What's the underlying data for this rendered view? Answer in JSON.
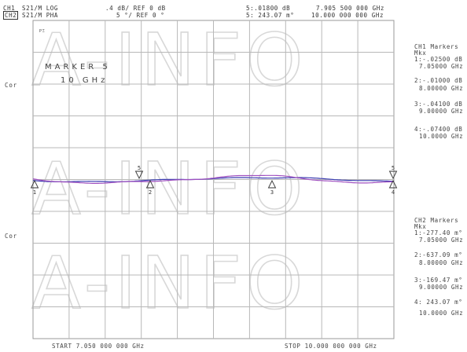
{
  "header": {
    "ch1_label": "CH1",
    "ch2_label": "CH2",
    "ch1_format": "S21/M LOG",
    "ch2_format": "S21/M PHA",
    "ch1_scale": ".4 dB/ REF 0 dB",
    "ch2_scale": "5 °/ REF 0 °",
    "ch1_active_marker": "5:.01800 dB",
    "ch2_active_marker": "5: 243.07 m°",
    "ch1_marker_freq": "7.905 500 000 GHz",
    "ch2_marker_freq": "10.000 000 000 GHz"
  },
  "left_labels": {
    "cor_top": "Cor",
    "cor_bottom": "Cor",
    "px_tag": "PΞ"
  },
  "marker_box": {
    "line1": "MARKER 5",
    "line2": "10 GHz"
  },
  "ch1_markers": {
    "title": "CH1 Markers",
    "subtitle": "Mkx",
    "items": [
      {
        "value": "1:-.02500 dB",
        "freq": "7.05000 GHz"
      },
      {
        "value": "2:-.01000 dB",
        "freq": "8.00000 GHz"
      },
      {
        "value": "3:-.04100 dB",
        "freq": "9.00000 GHz"
      },
      {
        "value": "4:-.07400 dB",
        "freq": "10.0000 GHz"
      }
    ]
  },
  "ch2_markers": {
    "title": "CH2 Markers",
    "subtitle": "Mkx",
    "items": [
      {
        "value": "1:-277.40 m°",
        "freq": "7.05000 GHz"
      },
      {
        "value": "2:-637.09 m°",
        "freq": "8.00000 GHz"
      },
      {
        "value": "3:-169.47 m°",
        "freq": "9.00000 GHz"
      },
      {
        "value": "4: 243.07 m°",
        "freq": "10.0000 GHz"
      }
    ]
  },
  "footer": {
    "start": "START 7.050 000 000 GHz",
    "stop": "STOP 10.000 000 000 GHz"
  },
  "watermark": "A-INFO",
  "marker_numbers": [
    "1",
    "2",
    "3",
    "4",
    "5"
  ],
  "colors": {
    "grid": "#b8b8b8",
    "trace_ch1": "#3a3ab0",
    "trace_ch2": "#a050c0",
    "marker": "#333333",
    "watermark": "#d8d8d8"
  }
}
